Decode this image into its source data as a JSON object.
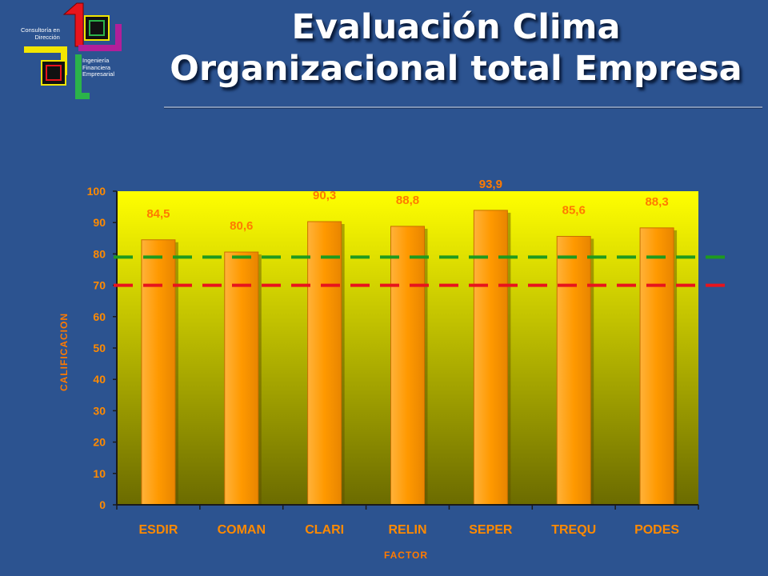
{
  "header": {
    "title_line1": "Evaluación Clima",
    "title_line2": "Organizacional total Empresa"
  },
  "logo": {
    "text_top": [
      "Consultoría en",
      "Dirección"
    ],
    "text_bottom": [
      "Ingeniería",
      "Financiera",
      "Empresarial"
    ],
    "colors": [
      "#e8141c",
      "#f2e600",
      "#2bb34a",
      "#b21f9a"
    ]
  },
  "chart_data": {
    "type": "bar",
    "categories": [
      "ESDIR",
      "COMAN",
      "CLARI",
      "RELIN",
      "SEPER",
      "TREQU",
      "PODES"
    ],
    "values": [
      84.5,
      80.6,
      90.3,
      88.8,
      93.9,
      85.6,
      88.3
    ],
    "value_labels": [
      "84,5",
      "80,6",
      "90,3",
      "88,8",
      "93,9",
      "85,6",
      "88,3"
    ],
    "xlabel": "FACTOR",
    "ylabel": "CALIFICACION",
    "ylim": [
      0,
      100
    ],
    "yticks": [
      0,
      10,
      20,
      30,
      40,
      50,
      60,
      70,
      80,
      90,
      100
    ],
    "reference_lines": [
      {
        "value": 79,
        "color": "#1e9a1e",
        "style": "dashed"
      },
      {
        "value": 70,
        "color": "#e8141c",
        "style": "dashed"
      }
    ],
    "colors": {
      "bar": "#ff9900",
      "plot_top": "#ffff00",
      "plot_bottom": "#6b6b00",
      "text": "#ff8a00"
    }
  }
}
